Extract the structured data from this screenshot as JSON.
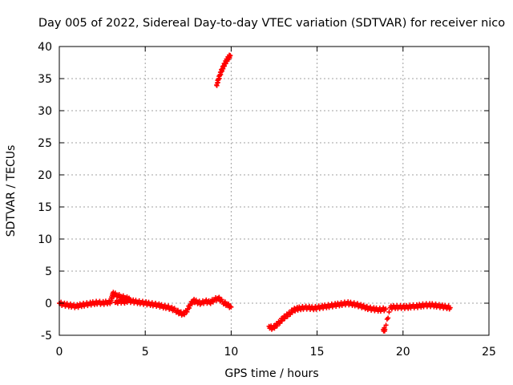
{
  "chart_data": {
    "type": "scatter",
    "title": "Day 005 of 2022, Sidereal Day-to-day VTEC variation (SDTVAR) for receiver nico",
    "xlabel": "GPS time / hours",
    "ylabel": "SDTVAR / TECUs",
    "xlim": [
      0,
      25
    ],
    "ylim": [
      -5,
      40
    ],
    "xticks": [
      0,
      5,
      10,
      15,
      20,
      25
    ],
    "yticks": [
      -5,
      0,
      5,
      10,
      15,
      20,
      25,
      30,
      35,
      40
    ],
    "grid": true,
    "marker": "+",
    "colors": {
      "series": "#ff0000",
      "grid": "#a0a0a0",
      "axis": "#000000"
    },
    "series": [
      {
        "name": "SDTVAR",
        "points": [
          [
            0.0,
            0.0
          ],
          [
            0.25,
            -0.2
          ],
          [
            0.5,
            -0.3
          ],
          [
            0.75,
            -0.4
          ],
          [
            1.0,
            -0.5
          ],
          [
            1.25,
            -0.3
          ],
          [
            1.5,
            -0.2
          ],
          [
            1.75,
            -0.1
          ],
          [
            2.0,
            0.0
          ],
          [
            2.25,
            0.1
          ],
          [
            2.5,
            0.0
          ],
          [
            2.75,
            0.1
          ],
          [
            3.0,
            0.2
          ],
          [
            3.1,
            1.5
          ],
          [
            3.3,
            1.3
          ],
          [
            3.6,
            1.0
          ],
          [
            3.9,
            0.8
          ],
          [
            4.1,
            0.5
          ],
          [
            3.25,
            0.1
          ],
          [
            3.5,
            0.3
          ],
          [
            3.75,
            0.2
          ],
          [
            4.0,
            0.4
          ],
          [
            4.25,
            0.3
          ],
          [
            4.5,
            0.2
          ],
          [
            4.75,
            0.1
          ],
          [
            5.0,
            0.0
          ],
          [
            5.25,
            -0.1
          ],
          [
            5.5,
            -0.2
          ],
          [
            5.75,
            -0.3
          ],
          [
            6.0,
            -0.5
          ],
          [
            6.25,
            -0.6
          ],
          [
            6.5,
            -0.8
          ],
          [
            6.75,
            -1.1
          ],
          [
            7.0,
            -1.5
          ],
          [
            7.2,
            -1.7
          ],
          [
            7.4,
            -1.3
          ],
          [
            7.6,
            -0.3
          ],
          [
            7.8,
            0.4
          ],
          [
            8.0,
            0.2
          ],
          [
            8.25,
            0.0
          ],
          [
            8.5,
            0.3
          ],
          [
            8.75,
            0.1
          ],
          [
            9.0,
            0.5
          ],
          [
            9.25,
            0.8
          ],
          [
            9.5,
            0.2
          ],
          [
            9.75,
            -0.2
          ],
          [
            10.0,
            -0.6
          ],
          [
            9.15,
            34.0
          ],
          [
            9.25,
            34.8
          ],
          [
            9.35,
            35.6
          ],
          [
            9.45,
            36.3
          ],
          [
            9.55,
            36.9
          ],
          [
            9.65,
            37.4
          ],
          [
            9.75,
            37.9
          ],
          [
            9.85,
            38.3
          ],
          [
            9.95,
            38.6
          ],
          [
            12.2,
            -3.6
          ],
          [
            12.4,
            -3.9
          ],
          [
            12.6,
            -3.5
          ],
          [
            12.8,
            -3.0
          ],
          [
            13.0,
            -2.4
          ],
          [
            13.2,
            -2.0
          ],
          [
            13.4,
            -1.6
          ],
          [
            13.6,
            -1.1
          ],
          [
            13.8,
            -0.9
          ],
          [
            14.0,
            -0.8
          ],
          [
            14.25,
            -0.7
          ],
          [
            14.5,
            -0.7
          ],
          [
            14.75,
            -0.8
          ],
          [
            15.0,
            -0.7
          ],
          [
            15.25,
            -0.6
          ],
          [
            15.5,
            -0.5
          ],
          [
            15.75,
            -0.4
          ],
          [
            16.0,
            -0.3
          ],
          [
            16.25,
            -0.2
          ],
          [
            16.5,
            -0.1
          ],
          [
            16.75,
            0.0
          ],
          [
            17.0,
            -0.1
          ],
          [
            17.25,
            -0.2
          ],
          [
            17.5,
            -0.4
          ],
          [
            17.75,
            -0.6
          ],
          [
            18.0,
            -0.8
          ],
          [
            18.25,
            -0.9
          ],
          [
            18.5,
            -1.0
          ],
          [
            18.75,
            -1.0
          ],
          [
            19.0,
            -0.9
          ],
          [
            18.85,
            -4.1
          ],
          [
            18.95,
            -4.1
          ],
          [
            19.25,
            -0.7
          ],
          [
            19.5,
            -0.6
          ],
          [
            19.75,
            -0.6
          ],
          [
            20.0,
            -0.6
          ],
          [
            20.25,
            -0.6
          ],
          [
            20.5,
            -0.5
          ],
          [
            20.75,
            -0.5
          ],
          [
            21.0,
            -0.4
          ],
          [
            21.25,
            -0.3
          ],
          [
            21.5,
            -0.3
          ],
          [
            21.75,
            -0.3
          ],
          [
            22.0,
            -0.4
          ],
          [
            22.25,
            -0.5
          ],
          [
            22.5,
            -0.6
          ],
          [
            22.75,
            -0.7
          ]
        ]
      }
    ]
  }
}
